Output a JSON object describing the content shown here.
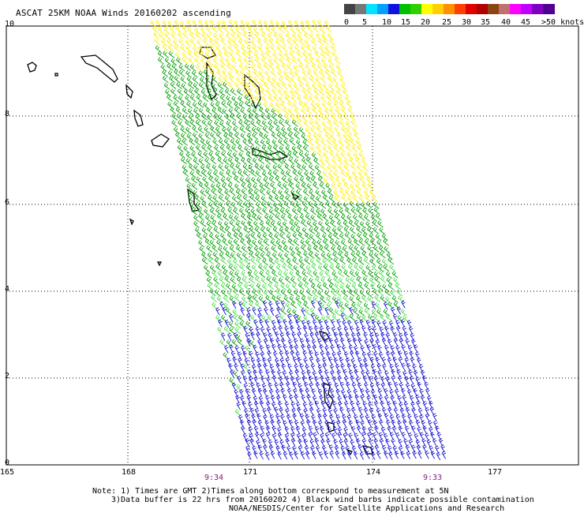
{
  "header": {
    "title": "ASCAT 25KM NOAA Winds 20160202 ascending"
  },
  "color_scale": {
    "colors": [
      "#444444",
      "#777777",
      "#00e5ff",
      "#00a0ff",
      "#1010e0",
      "#00c000",
      "#30d000",
      "#ffff00",
      "#ffd000",
      "#ff9000",
      "#ff4000",
      "#e00000",
      "#b00000",
      "#8b4513",
      "#c07070",
      "#ff00ff",
      "#c000ff",
      "#8000c0",
      "#500090"
    ],
    "labels": [
      "0",
      "5",
      "10",
      "15",
      "20",
      "25",
      "30",
      "35",
      "40",
      "45",
      ">50 knots"
    ]
  },
  "map": {
    "lon_ticks": [
      "165",
      "168",
      "171",
      "174",
      "177"
    ],
    "lat_ticks": [
      "0",
      "2",
      "4",
      "6",
      "8",
      "10"
    ],
    "time_left": "9:34",
    "time_right": "9:33"
  },
  "footer": {
    "line1": "Note: 1) Times are GMT 2)Times along bottom correspond to measurement at 5N",
    "line2": "3)Data buffer is 22 hrs from 20160202 4) Black wind barbs indicate possible contamination",
    "line3": "NOAA/NESDIS/Center for Satellite Applications and Research"
  },
  "style": {
    "yellow": "#ffee00",
    "green": "#00a000",
    "lightgreen": "#40e040",
    "blue": "#1010d0",
    "grid": "#000000"
  }
}
